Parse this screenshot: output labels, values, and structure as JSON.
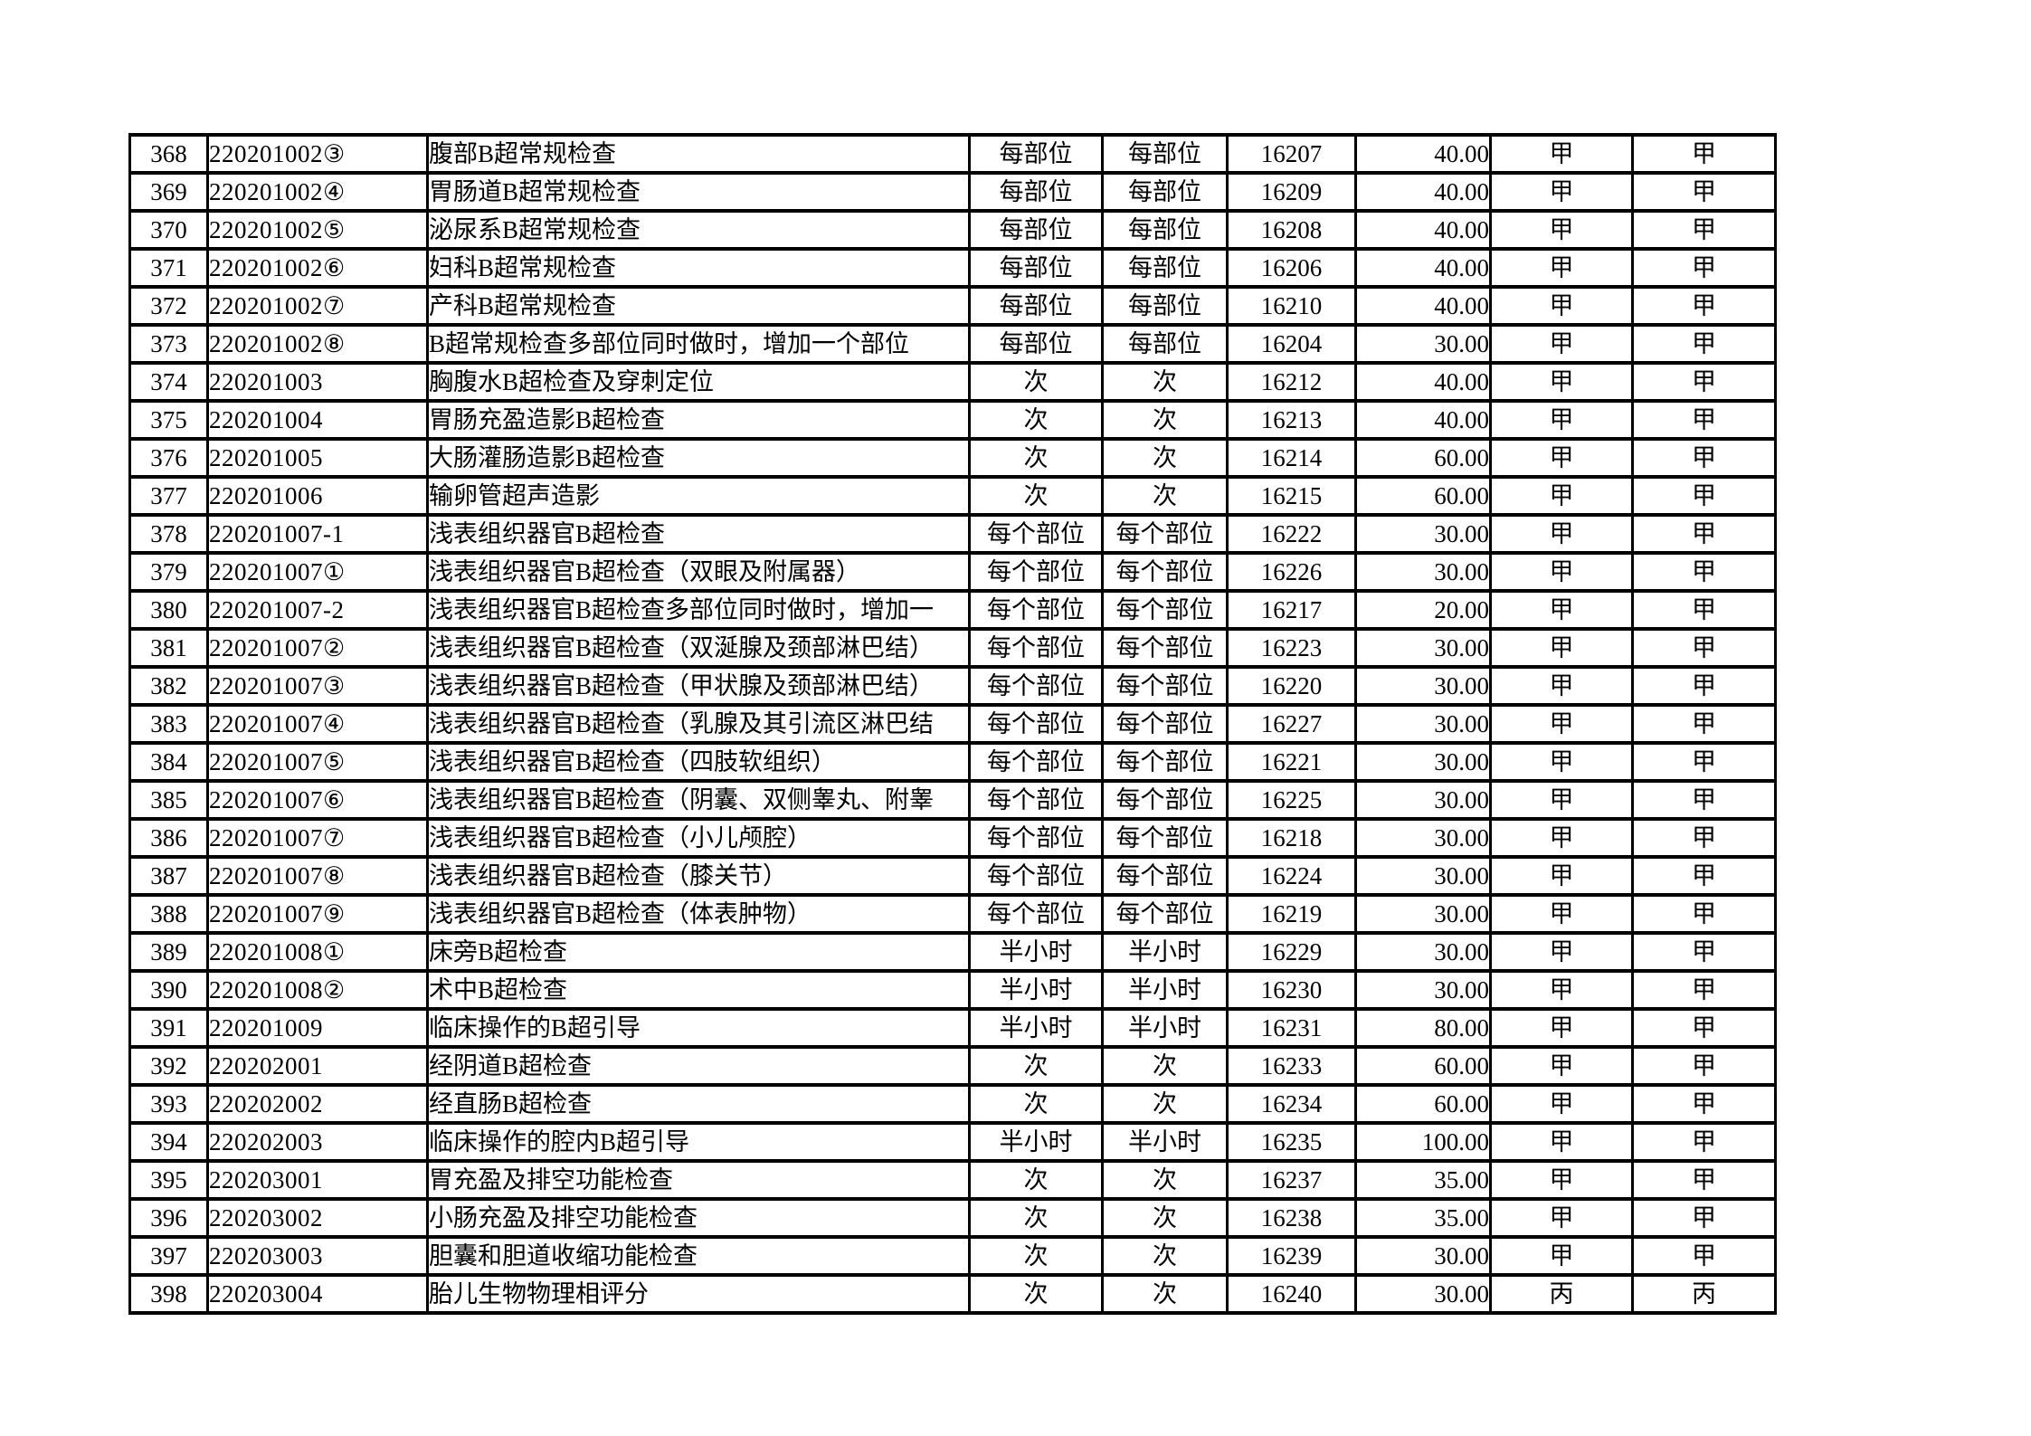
{
  "page": {
    "background_color": "#ffffff",
    "grid_color": "#000000",
    "text_color": "#000000"
  },
  "table": {
    "rows": [
      [
        "368",
        "220201002③",
        "腹部B超常规检查",
        "每部位",
        "每部位",
        "16207",
        "40.00",
        "甲",
        "甲"
      ],
      [
        "369",
        "220201002④",
        "胃肠道B超常规检查",
        "每部位",
        "每部位",
        "16209",
        "40.00",
        "甲",
        "甲"
      ],
      [
        "370",
        "220201002⑤",
        "泌尿系B超常规检查",
        "每部位",
        "每部位",
        "16208",
        "40.00",
        "甲",
        "甲"
      ],
      [
        "371",
        "220201002⑥",
        "妇科B超常规检查",
        "每部位",
        "每部位",
        "16206",
        "40.00",
        "甲",
        "甲"
      ],
      [
        "372",
        "220201002⑦",
        "产科B超常规检查",
        "每部位",
        "每部位",
        "16210",
        "40.00",
        "甲",
        "甲"
      ],
      [
        "373",
        "220201002⑧",
        "B超常规检查多部位同时做时，增加一个部位",
        "每部位",
        "每部位",
        "16204",
        "30.00",
        "甲",
        "甲"
      ],
      [
        "374",
        "220201003",
        "胸腹水B超检查及穿刺定位",
        "次",
        "次",
        "16212",
        "40.00",
        "甲",
        "甲"
      ],
      [
        "375",
        "220201004",
        "胃肠充盈造影B超检查",
        "次",
        "次",
        "16213",
        "40.00",
        "甲",
        "甲"
      ],
      [
        "376",
        "220201005",
        "大肠灌肠造影B超检查",
        "次",
        "次",
        "16214",
        "60.00",
        "甲",
        "甲"
      ],
      [
        "377",
        "220201006",
        "输卵管超声造影",
        "次",
        "次",
        "16215",
        "60.00",
        "甲",
        "甲"
      ],
      [
        "378",
        "220201007-1",
        "浅表组织器官B超检查",
        "每个部位",
        "每个部位",
        "16222",
        "30.00",
        "甲",
        "甲"
      ],
      [
        "379",
        "220201007①",
        "浅表组织器官B超检查（双眼及附属器）",
        "每个部位",
        "每个部位",
        "16226",
        "30.00",
        "甲",
        "甲"
      ],
      [
        "380",
        "220201007-2",
        "浅表组织器官B超检查多部位同时做时，增加一",
        "每个部位",
        "每个部位",
        "16217",
        "20.00",
        "甲",
        "甲"
      ],
      [
        "381",
        "220201007②",
        "浅表组织器官B超检查（双涎腺及颈部淋巴结）",
        "每个部位",
        "每个部位",
        "16223",
        "30.00",
        "甲",
        "甲"
      ],
      [
        "382",
        "220201007③",
        "浅表组织器官B超检查（甲状腺及颈部淋巴结）",
        "每个部位",
        "每个部位",
        "16220",
        "30.00",
        "甲",
        "甲"
      ],
      [
        "383",
        "220201007④",
        "浅表组织器官B超检查（乳腺及其引流区淋巴结",
        "每个部位",
        "每个部位",
        "16227",
        "30.00",
        "甲",
        "甲"
      ],
      [
        "384",
        "220201007⑤",
        "浅表组织器官B超检查（四肢软组织）",
        "每个部位",
        "每个部位",
        "16221",
        "30.00",
        "甲",
        "甲"
      ],
      [
        "385",
        "220201007⑥",
        "浅表组织器官B超检查（阴囊、双侧睾丸、附睾",
        "每个部位",
        "每个部位",
        "16225",
        "30.00",
        "甲",
        "甲"
      ],
      [
        "386",
        "220201007⑦",
        "浅表组织器官B超检查（小儿颅腔）",
        "每个部位",
        "每个部位",
        "16218",
        "30.00",
        "甲",
        "甲"
      ],
      [
        "387",
        "220201007⑧",
        "浅表组织器官B超检查（膝关节）",
        "每个部位",
        "每个部位",
        "16224",
        "30.00",
        "甲",
        "甲"
      ],
      [
        "388",
        "220201007⑨",
        "浅表组织器官B超检查（体表肿物）",
        "每个部位",
        "每个部位",
        "16219",
        "30.00",
        "甲",
        "甲"
      ],
      [
        "389",
        "220201008①",
        "床旁B超检查",
        "半小时",
        "半小时",
        "16229",
        "30.00",
        "甲",
        "甲"
      ],
      [
        "390",
        "220201008②",
        "术中B超检查",
        "半小时",
        "半小时",
        "16230",
        "30.00",
        "甲",
        "甲"
      ],
      [
        "391",
        "220201009",
        "临床操作的B超引导",
        "半小时",
        "半小时",
        "16231",
        "80.00",
        "甲",
        "甲"
      ],
      [
        "392",
        "220202001",
        "经阴道B超检查",
        "次",
        "次",
        "16233",
        "60.00",
        "甲",
        "甲"
      ],
      [
        "393",
        "220202002",
        "经直肠B超检查",
        "次",
        "次",
        "16234",
        "60.00",
        "甲",
        "甲"
      ],
      [
        "394",
        "220202003",
        "临床操作的腔内B超引导",
        "半小时",
        "半小时",
        "16235",
        "100.00",
        "甲",
        "甲"
      ],
      [
        "395",
        "220203001",
        "胃充盈及排空功能检查",
        "次",
        "次",
        "16237",
        "35.00",
        "甲",
        "甲"
      ],
      [
        "396",
        "220203002",
        "小肠充盈及排空功能检查",
        "次",
        "次",
        "16238",
        "35.00",
        "甲",
        "甲"
      ],
      [
        "397",
        "220203003",
        "胆囊和胆道收缩功能检查",
        "次",
        "次",
        "16239",
        "30.00",
        "甲",
        "甲"
      ],
      [
        "398",
        "220203004",
        "胎儿生物物理相评分",
        "次",
        "次",
        "16240",
        "30.00",
        "丙",
        "丙"
      ]
    ]
  }
}
